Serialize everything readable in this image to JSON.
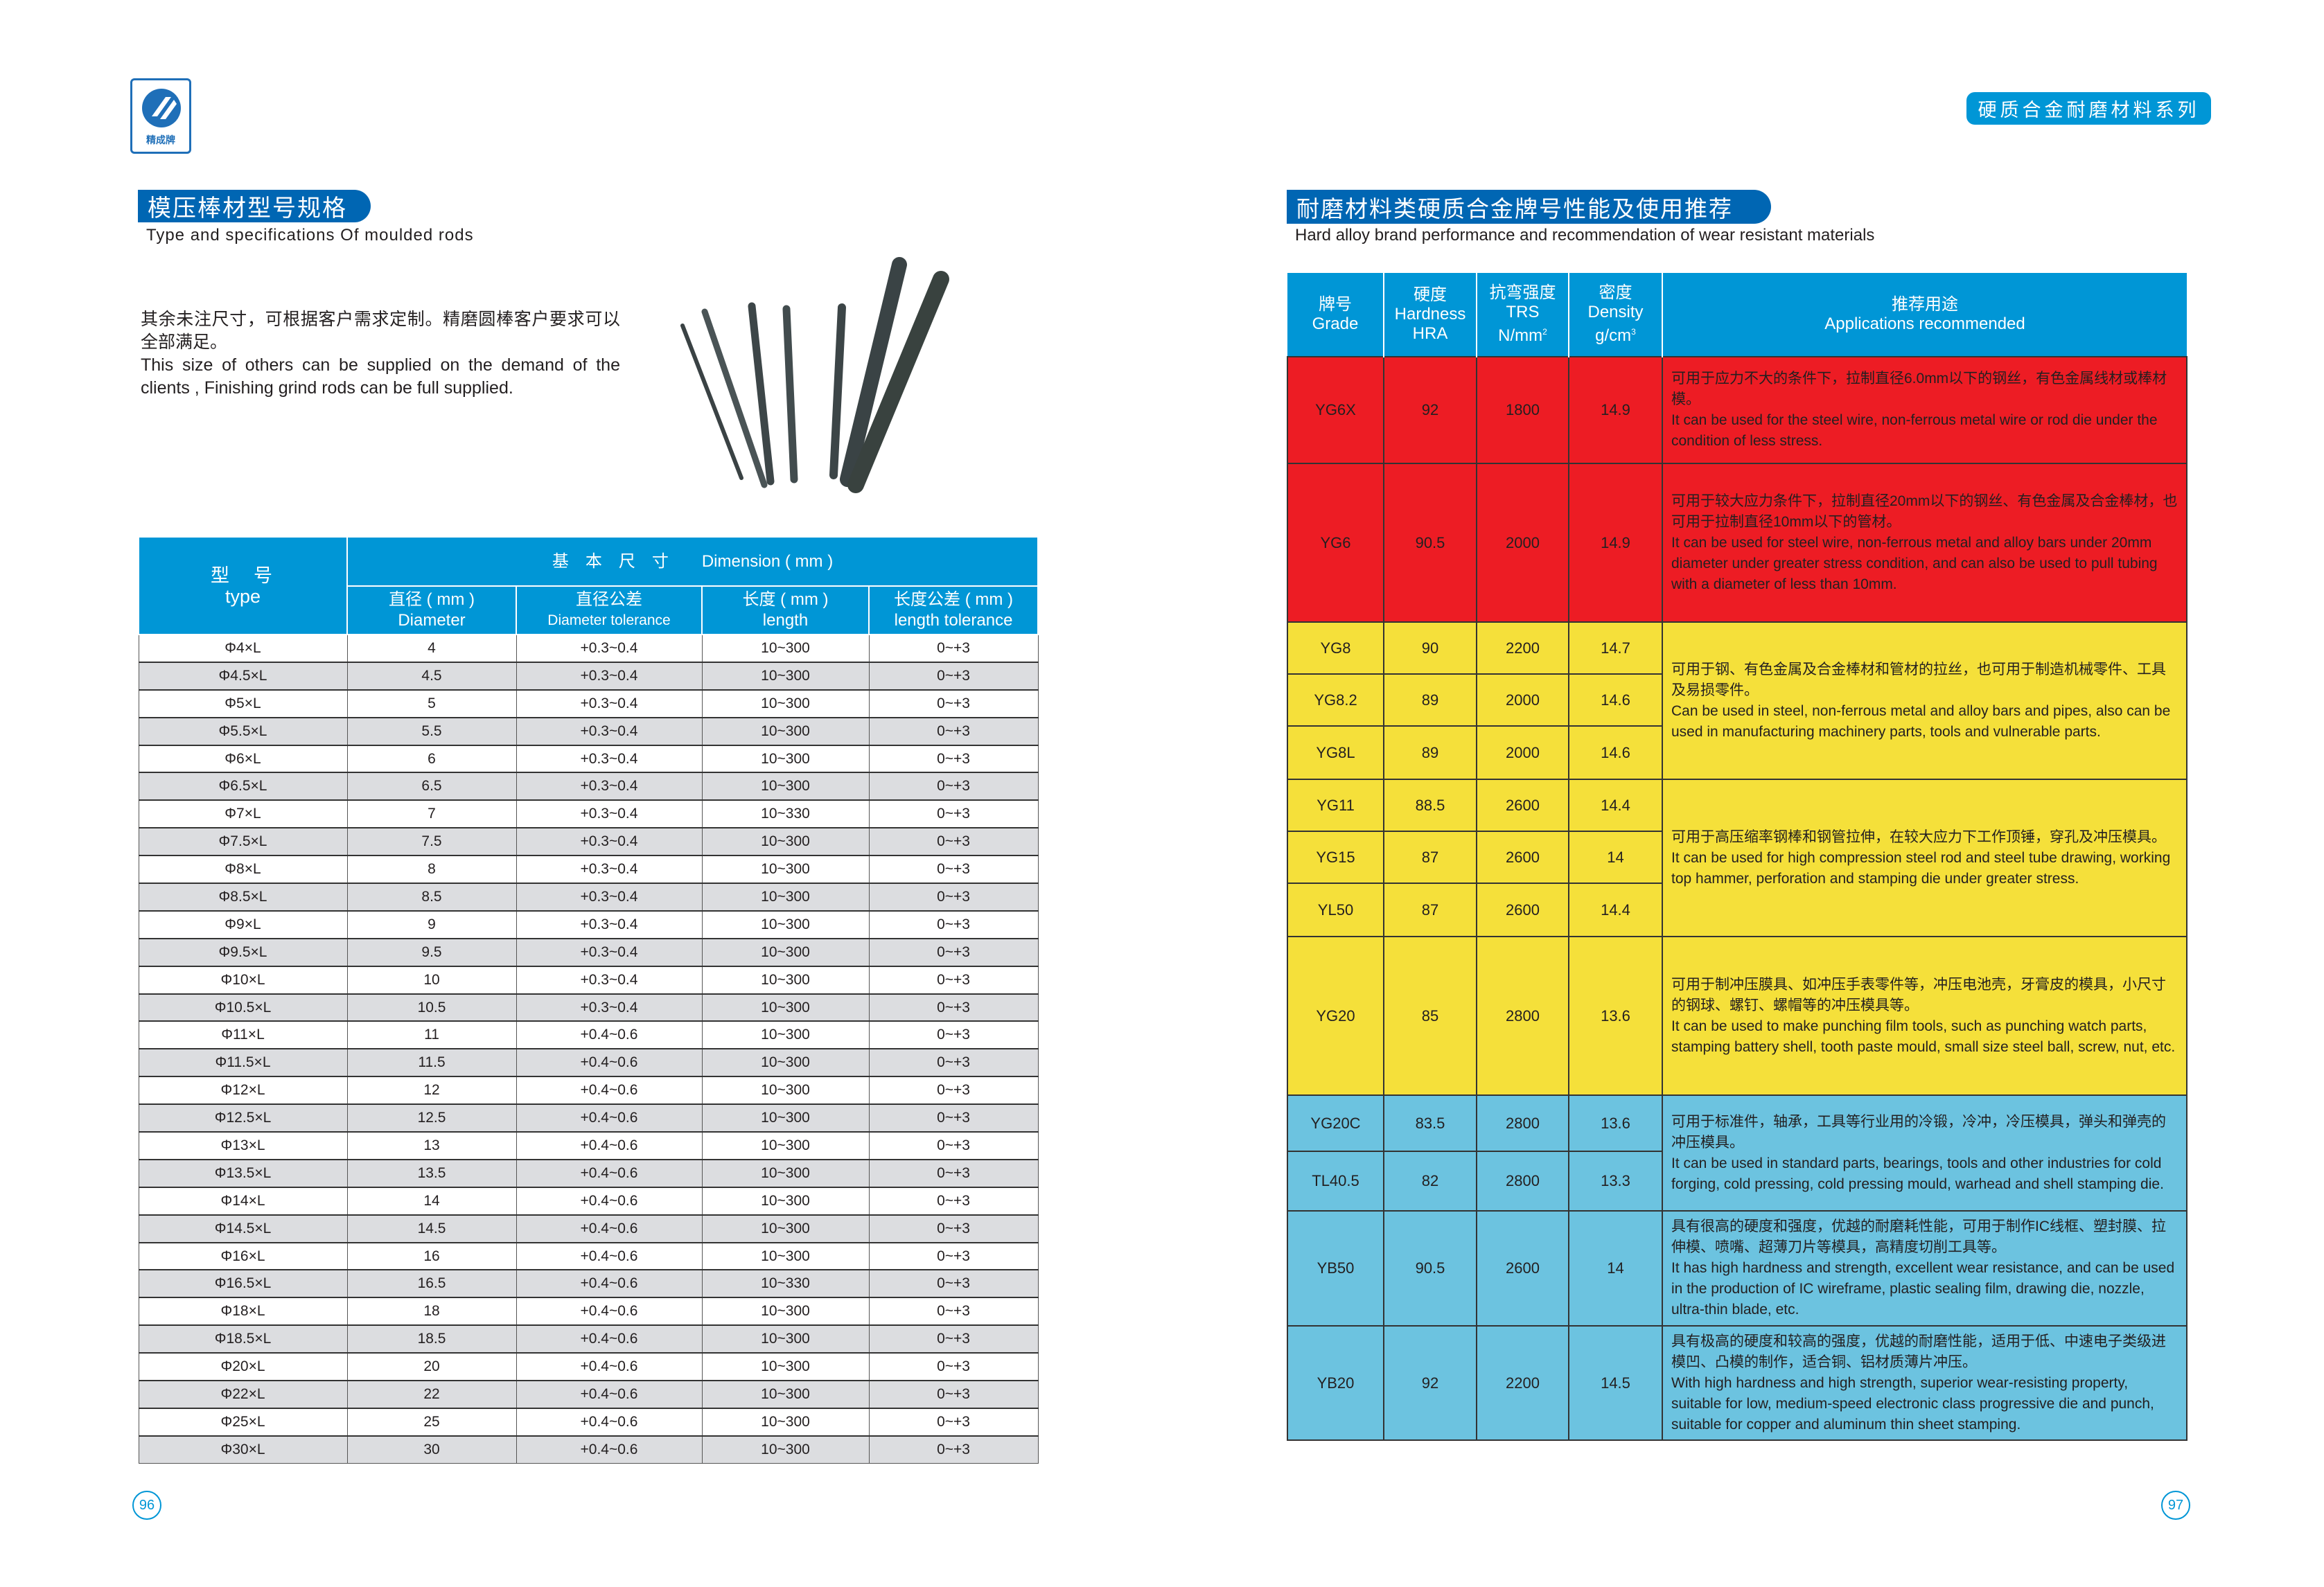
{
  "left_page": {
    "logo_text": "精成牌",
    "title": "模压棒材型号规格",
    "subtitle": "Type and specifications Of moulded rods",
    "note_cn": "其余未注尺寸，可根据客户需求定制。精磨圆棒客户要求可以全部满足。",
    "note_en": "This size of others can be supplied on the demand of the clients , Finishing grind rods can be full supplied.",
    "table": {
      "type_cn": "型　号",
      "type_en": "type",
      "group_header": "基　本　尺　寸　　Dimension ( mm )",
      "columns": [
        {
          "cn": "直径 ( mm )",
          "en": "Diameter"
        },
        {
          "cn": "直径公差",
          "en": "Diameter tolerance"
        },
        {
          "cn": "长度 ( mm )",
          "en": "length"
        },
        {
          "cn": "长度公差 ( mm )",
          "en": "length tolerance"
        }
      ],
      "rows": [
        [
          "Φ4×L",
          "4",
          "+0.3~0.4",
          "10~300",
          "0~+3"
        ],
        [
          "Φ4.5×L",
          "4.5",
          "+0.3~0.4",
          "10~300",
          "0~+3"
        ],
        [
          "Φ5×L",
          "5",
          "+0.3~0.4",
          "10~300",
          "0~+3"
        ],
        [
          "Φ5.5×L",
          "5.5",
          "+0.3~0.4",
          "10~300",
          "0~+3"
        ],
        [
          "Φ6×L",
          "6",
          "+0.3~0.4",
          "10~300",
          "0~+3"
        ],
        [
          "Φ6.5×L",
          "6.5",
          "+0.3~0.4",
          "10~300",
          "0~+3"
        ],
        [
          "Φ7×L",
          "7",
          "+0.3~0.4",
          "10~330",
          "0~+3"
        ],
        [
          "Φ7.5×L",
          "7.5",
          "+0.3~0.4",
          "10~300",
          "0~+3"
        ],
        [
          "Φ8×L",
          "8",
          "+0.3~0.4",
          "10~300",
          "0~+3"
        ],
        [
          "Φ8.5×L",
          "8.5",
          "+0.3~0.4",
          "10~300",
          "0~+3"
        ],
        [
          "Φ9×L",
          "9",
          "+0.3~0.4",
          "10~300",
          "0~+3"
        ],
        [
          "Φ9.5×L",
          "9.5",
          "+0.3~0.4",
          "10~300",
          "0~+3"
        ],
        [
          "Φ10×L",
          "10",
          "+0.3~0.4",
          "10~300",
          "0~+3"
        ],
        [
          "Φ10.5×L",
          "10.5",
          "+0.3~0.4",
          "10~300",
          "0~+3"
        ],
        [
          "Φ11×L",
          "11",
          "+0.4~0.6",
          "10~300",
          "0~+3"
        ],
        [
          "Φ11.5×L",
          "11.5",
          "+0.4~0.6",
          "10~300",
          "0~+3"
        ],
        [
          "Φ12×L",
          "12",
          "+0.4~0.6",
          "10~300",
          "0~+3"
        ],
        [
          "Φ12.5×L",
          "12.5",
          "+0.4~0.6",
          "10~300",
          "0~+3"
        ],
        [
          "Φ13×L",
          "13",
          "+0.4~0.6",
          "10~300",
          "0~+3"
        ],
        [
          "Φ13.5×L",
          "13.5",
          "+0.4~0.6",
          "10~300",
          "0~+3"
        ],
        [
          "Φ14×L",
          "14",
          "+0.4~0.6",
          "10~300",
          "0~+3"
        ],
        [
          "Φ14.5×L",
          "14.5",
          "+0.4~0.6",
          "10~300",
          "0~+3"
        ],
        [
          "Φ16×L",
          "16",
          "+0.4~0.6",
          "10~300",
          "0~+3"
        ],
        [
          "Φ16.5×L",
          "16.5",
          "+0.4~0.6",
          "10~330",
          "0~+3"
        ],
        [
          "Φ18×L",
          "18",
          "+0.4~0.6",
          "10~300",
          "0~+3"
        ],
        [
          "Φ18.5×L",
          "18.5",
          "+0.4~0.6",
          "10~300",
          "0~+3"
        ],
        [
          "Φ20×L",
          "20",
          "+0.4~0.6",
          "10~300",
          "0~+3"
        ],
        [
          "Φ22×L",
          "22",
          "+0.4~0.6",
          "10~300",
          "0~+3"
        ],
        [
          "Φ25×L",
          "25",
          "+0.4~0.6",
          "10~300",
          "0~+3"
        ],
        [
          "Φ30×L",
          "30",
          "+0.4~0.6",
          "10~300",
          "0~+3"
        ]
      ]
    },
    "page_number": "96"
  },
  "right_page": {
    "series_badge": "硬质合金耐磨材料系列",
    "title": "耐磨材料类硬质合金牌号性能及使用推荐",
    "subtitle": "Hard alloy brand performance and recommendation of wear resistant materials",
    "table": {
      "headers": {
        "grade": [
          "牌号",
          "Grade"
        ],
        "hardness": [
          "硬度",
          "Hardness",
          "HRA"
        ],
        "trs": [
          "抗弯强度",
          "TRS",
          "N/mm",
          "2"
        ],
        "density": [
          "密度",
          "Density",
          "g/cm",
          "3"
        ],
        "applications": [
          "推荐用途",
          "Applications recommended"
        ]
      },
      "groups": [
        {
          "color": "#ed1c24",
          "rows": [
            [
              "YG6X",
              "92",
              "1800",
              "14.9"
            ]
          ],
          "app_cn": "可用于应力不大的条件下，拉制直径6.0mm以下的钢丝，有色金属线材或棒材模。",
          "app_en": "It can be used for the steel wire, non-ferrous metal wire or rod die under the condition of less stress."
        },
        {
          "color": "#ed1c24",
          "rows": [
            [
              "YG6",
              "90.5",
              "2000",
              "14.9"
            ]
          ],
          "app_cn": "可用于较大应力条件下，拉制直径20mm以下的钢丝、有色金属及合金棒材，也可用于拉制直径10mm以下的管材。",
          "app_en": "It can be used for steel wire, non-ferrous metal and alloy bars under 20mm diameter under greater stress condition, and can also be used to pull tubing with a diameter of less than 10mm."
        },
        {
          "color": "#f5e03a",
          "rows": [
            [
              "YG8",
              "90",
              "2200",
              "14.7"
            ],
            [
              "YG8.2",
              "89",
              "2000",
              "14.6"
            ],
            [
              "YG8L",
              "89",
              "2000",
              "14.6"
            ]
          ],
          "app_cn": "可用于钢、有色金属及合金棒材和管材的拉丝，也可用于制造机械零件、工具及易损零件。",
          "app_en": "Can be used in steel, non-ferrous metal and alloy bars and pipes, also can be used in manufacturing machinery parts, tools and vulnerable parts."
        },
        {
          "color": "#f5e03a",
          "rows": [
            [
              "YG11",
              "88.5",
              "2600",
              "14.4"
            ],
            [
              "YG15",
              "87",
              "2600",
              "14"
            ],
            [
              "YL50",
              "87",
              "2600",
              "14.4"
            ]
          ],
          "app_cn": "可用于高压缩率钢棒和钢管拉伸，在较大应力下工作顶锤，穿孔及冲压模具。",
          "app_en": "It can be used for high compression steel rod and steel tube drawing, working top hammer, perforation and stamping die under greater stress."
        },
        {
          "color": "#f5e03a",
          "rows": [
            [
              "YG20",
              "85",
              "2800",
              "13.6"
            ]
          ],
          "app_cn": "可用于制冲压膜具、如冲压手表零件等，冲压电池壳，牙膏皮的模具，小尺寸的钢球、螺钉、螺帽等的冲压模具等。",
          "app_en": "It can be used to make punching film tools, such as punching watch parts, stamping battery shell, tooth paste mould, small size steel ball, screw, nut, etc."
        },
        {
          "color": "#6cc3e0",
          "rows": [
            [
              "YG20C",
              "83.5",
              "2800",
              "13.6"
            ],
            [
              "TL40.5",
              "82",
              "2800",
              "13.3"
            ]
          ],
          "app_cn": "可用于标准件，轴承，工具等行业用的冷锻，冷冲，冷压模具，弹头和弹壳的冲压模具。",
          "app_en": "It can be used in standard parts, bearings, tools and other industries for cold forging, cold pressing, cold pressing mould, warhead and shell stamping die."
        },
        {
          "color": "#6cc3e0",
          "rows": [
            [
              "YB50",
              "90.5",
              "2600",
              "14"
            ]
          ],
          "app_cn": "具有很高的硬度和强度，优越的耐磨耗性能，可用于制作IC线框、塑封膜、拉伸模、喷嘴、超薄刀片等模具，高精度切削工具等。",
          "app_en": "It has high hardness and strength, excellent wear resistance, and can be used in the production of IC wireframe, plastic sealing film, drawing die, nozzle, ultra-thin blade, etc."
        },
        {
          "color": "#6cc3e0",
          "rows": [
            [
              "YB20",
              "92",
              "2200",
              "14.5"
            ]
          ],
          "app_cn": "具有极高的硬度和较高的强度，优越的耐磨性能，适用于低、中速电子类级进模凹、凸模的制作，适合铜、铝材质薄片冲压。",
          "app_en": "With high hardness and high strength, superior wear-resisting property, suitable for low, medium-speed electronic class progressive die and punch, suitable for copper and aluminum thin sheet stamping."
        }
      ]
    },
    "page_number": "97"
  }
}
